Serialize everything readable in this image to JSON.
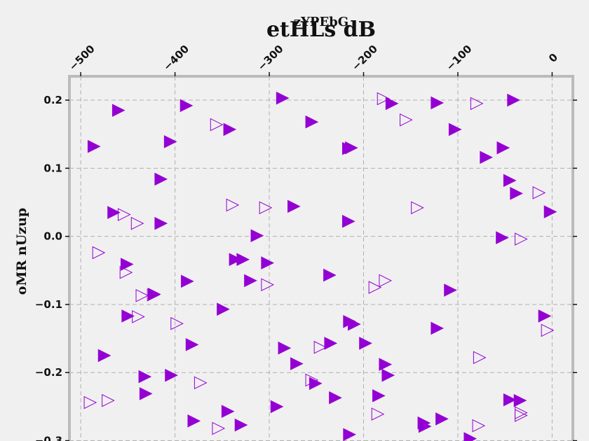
{
  "chart_data": {
    "type": "scatter",
    "title": "etHLs dB",
    "subtitle": "zYPEbG",
    "xlabel": "",
    "ylabel": "oMR nUzup",
    "xlim": [
      -512,
      22
    ],
    "ylim": [
      -0.32,
      0.235
    ],
    "x_ticks": [
      -500,
      -400,
      -300,
      -200,
      -100,
      0
    ],
    "x_tick_labels": [
      "−500",
      "−400",
      "−300",
      "−200",
      "−100",
      "0"
    ],
    "y_ticks": [
      0.2,
      0.1,
      0.0,
      -0.1,
      -0.2,
      -0.3
    ],
    "y_tick_labels": [
      "0.2",
      "0.1",
      "0.0",
      "−0.1",
      "−0.2",
      "−0.3"
    ],
    "x_axis_position": "top",
    "grid": true,
    "colors": {
      "filled": "#9400d3",
      "hollow": "#9400d3",
      "frame": "#bbbbbb",
      "grid": "#b0b0b0",
      "background": "#f0f0f0"
    },
    "series": [
      {
        "marker": "filled-triangle-right",
        "points": [
          [
            -460,
            0.185
          ],
          [
            -486,
            0.132
          ],
          [
            -388,
            0.192
          ],
          [
            -405,
            0.139
          ],
          [
            -342,
            0.157
          ],
          [
            -286,
            0.203
          ],
          [
            -255,
            0.168
          ],
          [
            -216,
            0.129
          ],
          [
            -213,
            0.13
          ],
          [
            -170,
            0.195
          ],
          [
            -122,
            0.196
          ],
          [
            -103,
            0.157
          ],
          [
            -70,
            0.116
          ],
          [
            -52,
            0.13
          ],
          [
            -41,
            0.2
          ],
          [
            -45,
            0.082
          ],
          [
            -38,
            0.063
          ],
          [
            -2,
            0.036
          ],
          [
            -415,
            0.084
          ],
          [
            -465,
            0.035
          ],
          [
            -415,
            0.019
          ],
          [
            -274,
            0.044
          ],
          [
            -216,
            0.022
          ],
          [
            -313,
            0.001
          ],
          [
            -53,
            -0.002
          ],
          [
            -451,
            -0.041
          ],
          [
            -336,
            -0.034
          ],
          [
            -328,
            -0.034
          ],
          [
            -302,
            -0.039
          ],
          [
            -387,
            -0.066
          ],
          [
            -320,
            -0.065
          ],
          [
            -236,
            -0.057
          ],
          [
            -108,
            -0.079
          ],
          [
            -422,
            -0.085
          ],
          [
            -349,
            -0.107
          ],
          [
            -450,
            -0.117
          ],
          [
            -215,
            -0.125
          ],
          [
            -210,
            -0.129
          ],
          [
            -122,
            -0.135
          ],
          [
            -8,
            -0.117
          ],
          [
            -475,
            -0.175
          ],
          [
            -382,
            -0.159
          ],
          [
            -284,
            -0.164
          ],
          [
            -235,
            -0.157
          ],
          [
            -198,
            -0.157
          ],
          [
            -271,
            -0.187
          ],
          [
            -177,
            -0.188
          ],
          [
            -432,
            -0.206
          ],
          [
            -404,
            -0.204
          ],
          [
            -251,
            -0.216
          ],
          [
            -174,
            -0.204
          ],
          [
            -431,
            -0.231
          ],
          [
            -230,
            -0.237
          ],
          [
            -184,
            -0.234
          ],
          [
            -45,
            -0.24
          ],
          [
            -34,
            -0.241
          ],
          [
            -380,
            -0.271
          ],
          [
            -344,
            -0.257
          ],
          [
            -330,
            -0.277
          ],
          [
            -292,
            -0.25
          ],
          [
            -215,
            -0.291
          ],
          [
            -136,
            -0.274
          ],
          [
            -135,
            -0.279
          ],
          [
            -117,
            -0.268
          ],
          [
            -87,
            -0.297
          ]
        ]
      },
      {
        "marker": "hollow-triangle-right",
        "points": [
          [
            -356,
            0.164
          ],
          [
            -179,
            0.202
          ],
          [
            -155,
            0.171
          ],
          [
            -80,
            0.195
          ],
          [
            -14,
            0.064
          ],
          [
            -339,
            0.046
          ],
          [
            -304,
            0.042
          ],
          [
            -143,
            0.042
          ],
          [
            -454,
            0.032
          ],
          [
            -440,
            0.019
          ],
          [
            -481,
            -0.024
          ],
          [
            -33,
            -0.004
          ],
          [
            -452,
            -0.053
          ],
          [
            -302,
            -0.071
          ],
          [
            -177,
            -0.065
          ],
          [
            -188,
            -0.075
          ],
          [
            -435,
            -0.087
          ],
          [
            -423,
            -0.086
          ],
          [
            -439,
            -0.118
          ],
          [
            -398,
            -0.128
          ],
          [
            -5,
            -0.138
          ],
          [
            -246,
            -0.163
          ],
          [
            -77,
            -0.178
          ],
          [
            -255,
            -0.211
          ],
          [
            -373,
            -0.215
          ],
          [
            -490,
            -0.244
          ],
          [
            -471,
            -0.241
          ],
          [
            -185,
            -0.261
          ],
          [
            -33,
            -0.259
          ],
          [
            -33,
            -0.263
          ],
          [
            -354,
            -0.282
          ],
          [
            -78,
            -0.278
          ]
        ]
      }
    ]
  }
}
